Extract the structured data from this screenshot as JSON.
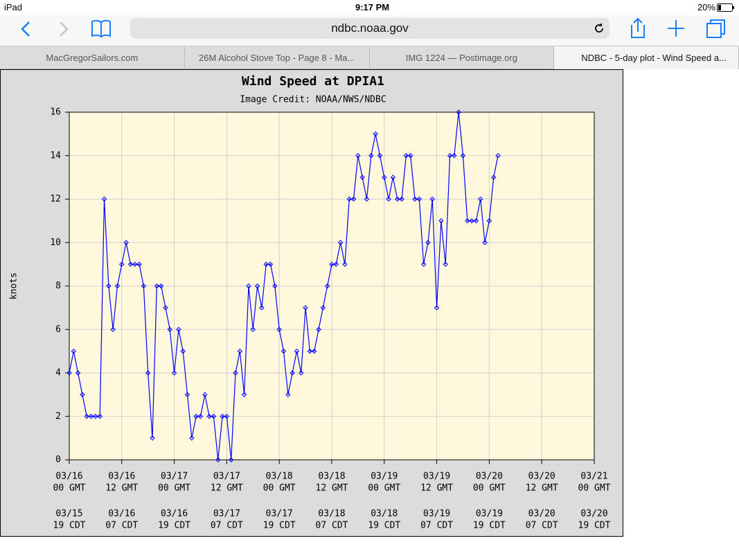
{
  "browser": {
    "status": {
      "device": "iPad",
      "time": "9:17 PM",
      "battery": "20%"
    },
    "url": "ndbc.noaa.gov",
    "tabs": [
      "MacGregorSailors.com",
      "26M Alcohol Stove Top - Page 8 - Ma...",
      "IMG 1224 — Postimage.org",
      "NDBC - 5-day plot - Wind Speed a..."
    ]
  },
  "chart_data": {
    "type": "line",
    "title": "Wind Speed at DPIA1",
    "subtitle": "Image Credit: NOAA/NWS/NDBC",
    "y_label": "knots",
    "x": [
      0,
      1,
      2,
      3,
      4,
      5,
      6,
      7,
      8,
      9,
      10,
      11,
      12,
      13,
      14,
      15,
      16,
      17,
      18,
      19,
      20,
      21,
      22,
      23,
      24,
      25,
      26,
      27,
      28,
      29,
      30,
      31,
      32,
      33,
      34,
      35,
      36,
      37,
      38,
      39,
      40,
      41,
      42,
      43,
      44,
      45,
      46,
      47,
      48,
      49,
      50,
      51,
      52,
      53,
      54,
      55,
      56,
      57,
      58,
      59,
      60,
      61,
      62,
      63,
      64,
      65,
      66,
      67,
      68,
      69,
      70,
      71,
      72,
      73,
      74,
      75,
      76,
      77,
      78,
      79,
      80,
      81,
      82,
      83,
      84,
      85,
      86,
      87,
      88,
      89,
      90,
      91,
      92,
      93,
      94,
      95,
      96,
      97,
      98
    ],
    "series": [
      {
        "name": "Wind Speed",
        "color": "#0000ff",
        "values": [
          4,
          5,
          4,
          3,
          2,
          2,
          2,
          2,
          12,
          8,
          6,
          8,
          9,
          10,
          9,
          9,
          9,
          8,
          4,
          1,
          8,
          8,
          7,
          6,
          4,
          6,
          5,
          3,
          1,
          2,
          2,
          3,
          2,
          2,
          0,
          2,
          2,
          0,
          4,
          5,
          3,
          8,
          6,
          8,
          7,
          9,
          9,
          8,
          6,
          5,
          3,
          4,
          5,
          4,
          7,
          5,
          5,
          6,
          7,
          8,
          9,
          9,
          10,
          9,
          12,
          12,
          14,
          13,
          12,
          14,
          15,
          14,
          13,
          12,
          13,
          12,
          12,
          14,
          14,
          12,
          12,
          9,
          10,
          12,
          7,
          11,
          9,
          14,
          14,
          16,
          14,
          11,
          11,
          11,
          12,
          10,
          11,
          13,
          14
        ]
      }
    ],
    "xlim": [
      0,
      120
    ],
    "xticks": [
      {
        "value": 0,
        "label": "03/16",
        "time": "00 GMT",
        "local_date": "03/15",
        "local_time": "19 CDT"
      },
      {
        "value": 12,
        "label": "03/16",
        "time": "12 GMT",
        "local_date": "03/16",
        "local_time": "07 CDT"
      },
      {
        "value": 24,
        "label": "03/17",
        "time": "00 GMT",
        "local_date": "03/16",
        "local_time": "19 CDT"
      },
      {
        "value": 36,
        "label": "03/17",
        "time": "12 GMT",
        "local_date": "03/17",
        "local_time": "07 CDT"
      },
      {
        "value": 48,
        "label": "03/18",
        "time": "00 GMT",
        "local_date": "03/17",
        "local_time": "19 CDT"
      },
      {
        "value": 60,
        "label": "03/18",
        "time": "12 GMT",
        "local_date": "03/18",
        "local_time": "07 CDT"
      },
      {
        "value": 72,
        "label": "03/19",
        "time": "00 GMT",
        "local_date": "03/18",
        "local_time": "19 CDT"
      },
      {
        "value": 84,
        "label": "03/19",
        "time": "12 GMT",
        "local_date": "03/19",
        "local_time": "07 CDT"
      },
      {
        "value": 96,
        "label": "03/20",
        "time": "00 GMT",
        "local_date": "03/19",
        "local_time": "19 CDT"
      },
      {
        "value": 108,
        "label": "03/20",
        "time": "12 GMT",
        "local_date": "03/20",
        "local_time": "07 CDT"
      },
      {
        "value": 120,
        "label": "03/21",
        "time": "00 GMT",
        "local_date": "03/20",
        "local_time": "19 CDT"
      }
    ],
    "ylim": [
      0,
      16
    ],
    "yticks": [
      0,
      2,
      4,
      6,
      8,
      10,
      12,
      14,
      16
    ],
    "grid": true
  }
}
